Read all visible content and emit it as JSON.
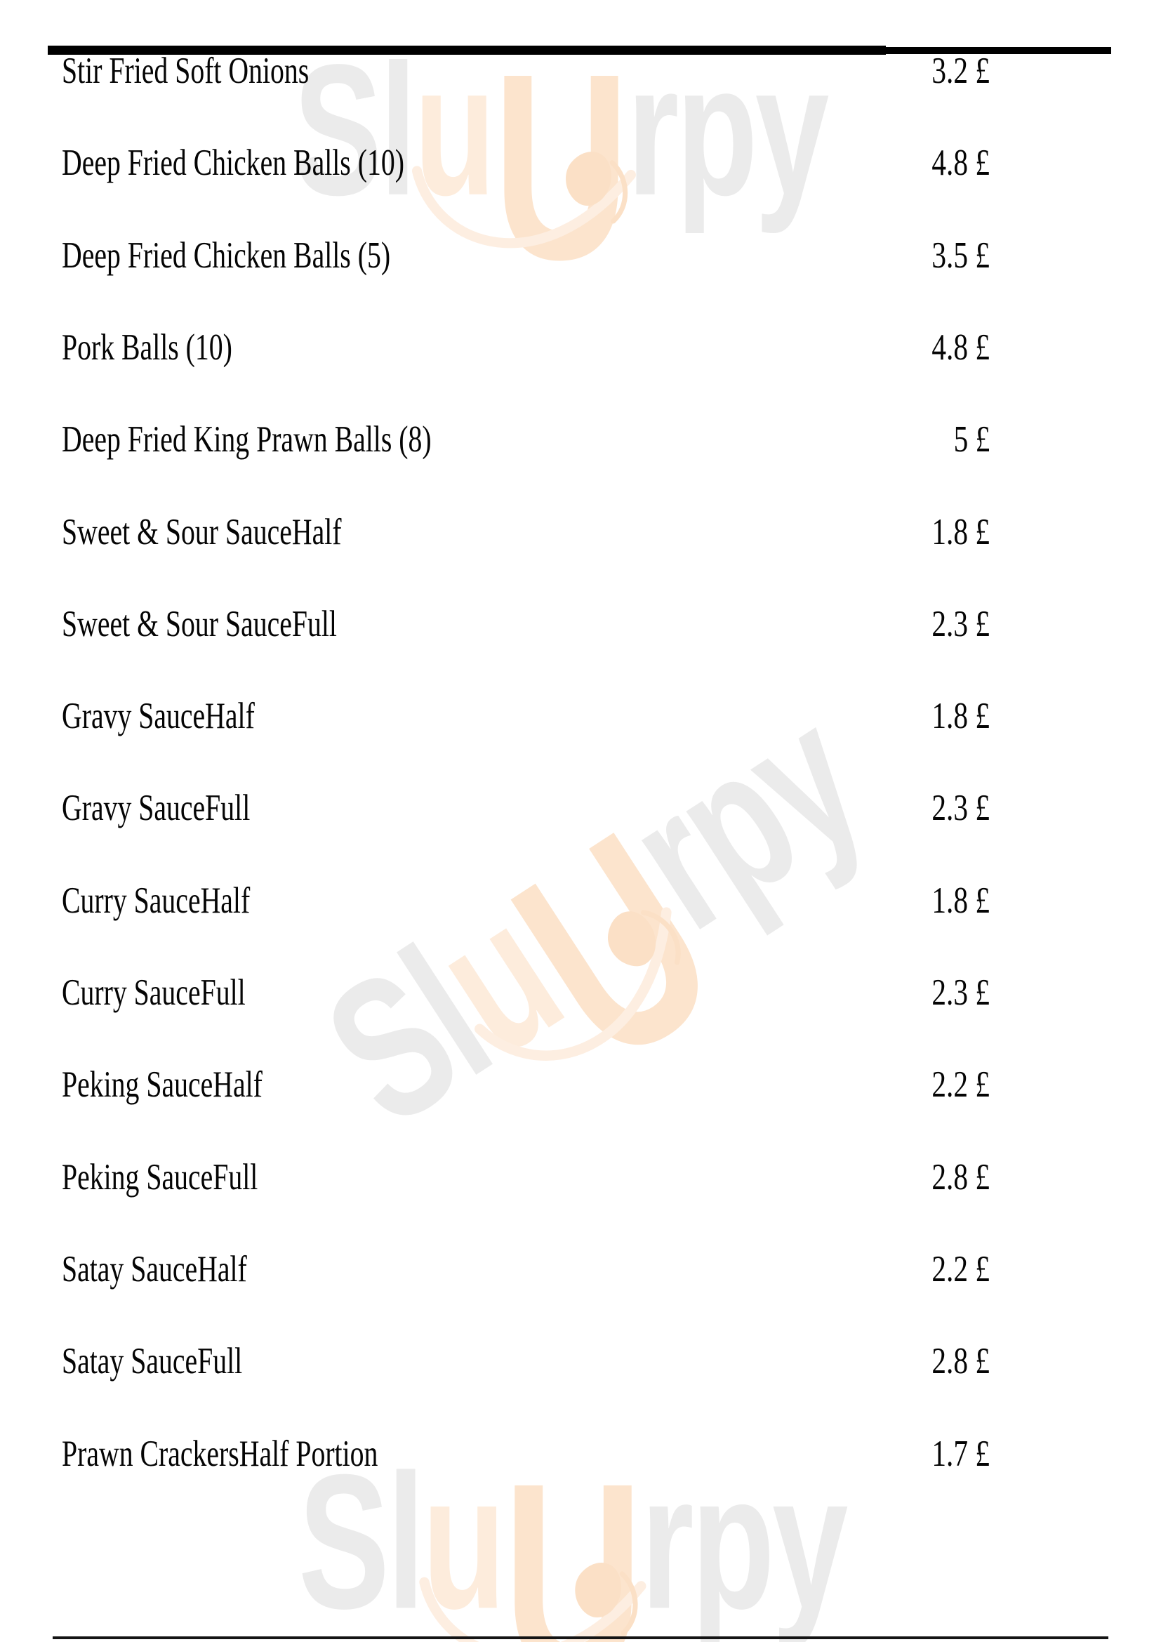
{
  "page": {
    "background": "#ffffff",
    "text_color": "#050505",
    "rule_color": "#000000"
  },
  "menu": {
    "currency": "£",
    "items": [
      {
        "name": "Stir Fried Soft Onions",
        "price": "3.2 £"
      },
      {
        "name": "Deep Fried Chicken Balls (10)",
        "price": "4.8 £"
      },
      {
        "name": "Deep Fried Chicken Balls (5)",
        "price": "3.5 £"
      },
      {
        "name": "Pork Balls (10)",
        "price": "4.8 £"
      },
      {
        "name": "Deep Fried King Prawn Balls (8)",
        "price": "5 £"
      },
      {
        "name": "Sweet & Sour SauceHalf",
        "price": "1.8 £"
      },
      {
        "name": "Sweet & Sour SauceFull",
        "price": "2.3 £"
      },
      {
        "name": "Gravy SauceHalf",
        "price": "1.8 £"
      },
      {
        "name": "Gravy SauceFull",
        "price": "2.3 £"
      },
      {
        "name": "Curry SauceHalf",
        "price": "1.8 £"
      },
      {
        "name": "Curry SauceFull",
        "price": "2.3 £"
      },
      {
        "name": "Peking SauceHalf",
        "price": "2.2 £"
      },
      {
        "name": "Peking SauceFull",
        "price": "2.8 £"
      },
      {
        "name": "Satay SauceHalf",
        "price": "2.2 £"
      },
      {
        "name": "Satay SauceFull",
        "price": "2.8 £"
      },
      {
        "name": "Prawn CrackersHalf Portion",
        "price": "1.7 £"
      }
    ]
  },
  "watermark": {
    "brand": "SluUrpy",
    "letters": [
      {
        "char": "S",
        "tone": "gray"
      },
      {
        "char": "l",
        "tone": "gray"
      },
      {
        "char": "u",
        "tone": "peach"
      },
      {
        "char": "U",
        "tone": "peach-deep",
        "big": true
      },
      {
        "char": "r",
        "tone": "gray"
      },
      {
        "char": "p",
        "tone": "gray"
      },
      {
        "char": "y",
        "tone": "gray"
      }
    ],
    "colors": {
      "gray": "#ebebeb",
      "peach": "#fdecdc",
      "peach-deep": "#fce4cd",
      "smile": "#fdeee1",
      "tongue": "#fbe0c6"
    }
  }
}
